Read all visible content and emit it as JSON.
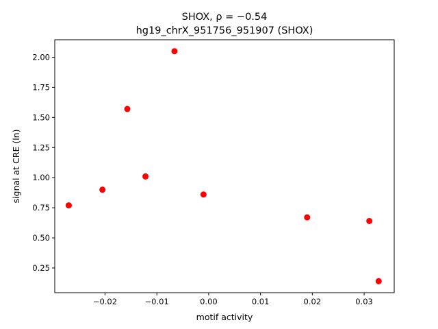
{
  "chart_data": {
    "type": "scatter",
    "title_line1": "SHOX, ρ = −0.54",
    "title_line2": "hg19_chrX_951756_951907 (SHOX)",
    "xlabel": "motif activity",
    "ylabel": "signal at CRE (ln)",
    "xlim": [
      -0.0297,
      0.0358
    ],
    "ylim": [
      0.045,
      2.145
    ],
    "xticks": [
      -0.02,
      -0.01,
      0.0,
      0.01,
      0.02,
      0.03
    ],
    "xtick_labels": [
      "−0.02",
      "−0.01",
      "0.00",
      "0.01",
      "0.02",
      "0.03"
    ],
    "yticks": [
      0.25,
      0.5,
      0.75,
      1.0,
      1.25,
      1.5,
      1.75,
      2.0
    ],
    "ytick_labels": [
      "0.25",
      "0.50",
      "0.75",
      "1.00",
      "1.25",
      "1.50",
      "1.75",
      "2.00"
    ],
    "grid": false,
    "marker_color": "#ff0000",
    "points": [
      {
        "x": -0.027,
        "y": 0.77
      },
      {
        "x": -0.0205,
        "y": 0.9
      },
      {
        "x": -0.0157,
        "y": 1.57
      },
      {
        "x": -0.0122,
        "y": 1.01
      },
      {
        "x": -0.0066,
        "y": 2.05
      },
      {
        "x": -0.001,
        "y": 0.86
      },
      {
        "x": 0.019,
        "y": 0.67
      },
      {
        "x": 0.031,
        "y": 0.64
      },
      {
        "x": 0.0328,
        "y": 0.14
      }
    ]
  }
}
